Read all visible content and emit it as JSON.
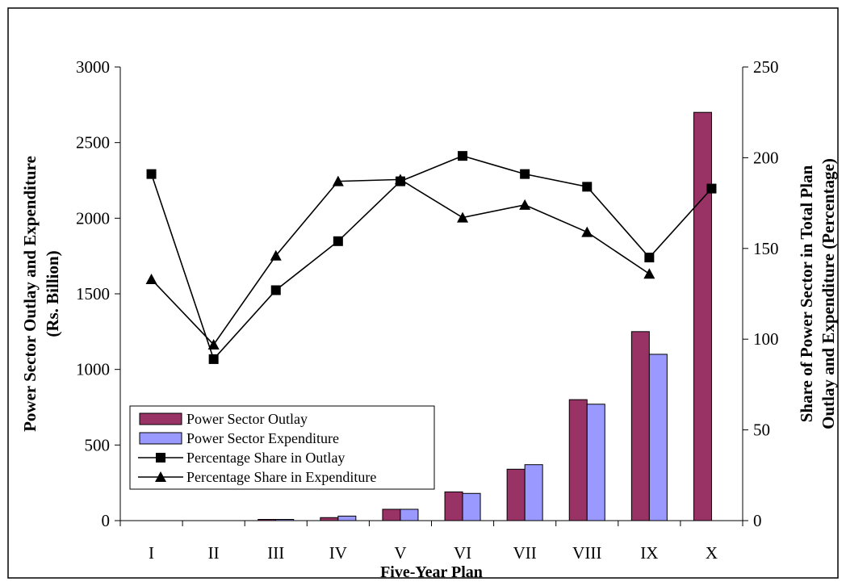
{
  "chart_data": {
    "type": "bar",
    "xlabel": "Five-Year Plan",
    "ylabel": "Power Sector Outlay and Expenditure",
    "ylabel_sub": "(Rs. Billion)",
    "y2label": "Share of Power Sector in Total Plan",
    "y2label_sub": "Outlay and Expenditure (Percentage)",
    "ylim": [
      0,
      3000
    ],
    "yticks": [
      0,
      500,
      1000,
      1500,
      2000,
      2500,
      3000
    ],
    "y2lim": [
      0,
      250
    ],
    "y2ticks": [
      0,
      50,
      100,
      150,
      200,
      250
    ],
    "categories": [
      "I",
      "II",
      "III",
      "IV",
      "V",
      "VI",
      "VII",
      "VIII",
      "IX",
      "X"
    ],
    "grid": false,
    "legend_position": "bottom-left",
    "series": [
      {
        "name": "Power Sector Outlay",
        "kind": "bar",
        "axis": "left",
        "color": "#993366",
        "values": [
          0,
          0,
          8,
          20,
          75,
          190,
          340,
          800,
          1250,
          2700
        ]
      },
      {
        "name": "Power Sector Expenditure",
        "kind": "bar",
        "axis": "left",
        "color": "#9999ff",
        "values": [
          0,
          0,
          8,
          30,
          75,
          180,
          370,
          770,
          1100,
          null
        ]
      },
      {
        "name": "Percentage Share in Outlay",
        "kind": "line",
        "marker": "square",
        "axis": "right",
        "color": "#000000",
        "values": [
          191,
          89,
          127,
          154,
          187,
          201,
          191,
          184,
          145,
          183
        ]
      },
      {
        "name": "Percentage Share in Expenditure",
        "kind": "line",
        "marker": "triangle",
        "axis": "right",
        "color": "#000000",
        "values": [
          133,
          97,
          146,
          187,
          188,
          167,
          174,
          159,
          136,
          null
        ]
      }
    ]
  }
}
